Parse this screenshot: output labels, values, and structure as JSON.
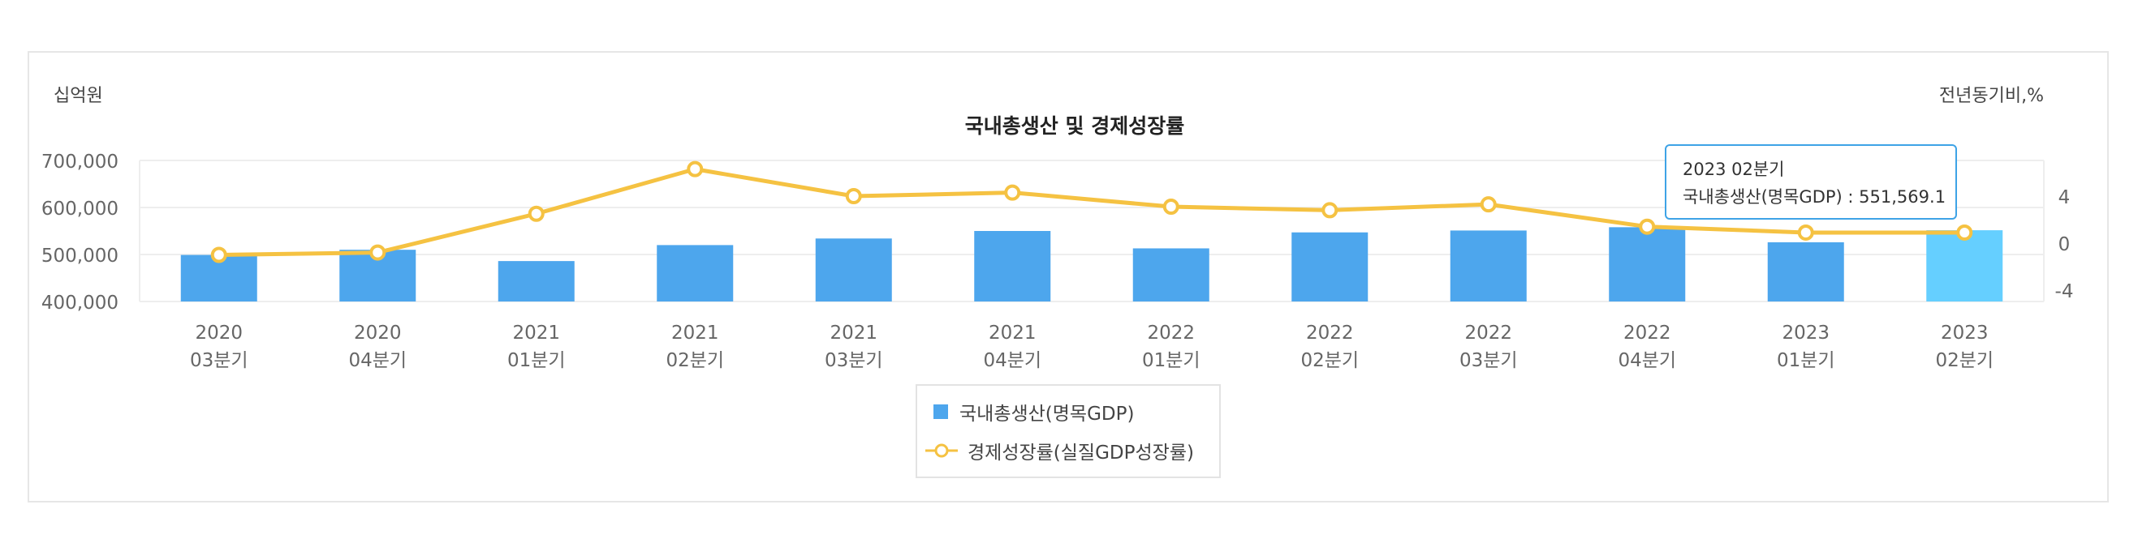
{
  "chart_data": {
    "type": "bar",
    "title": "국내총생산 및 경제성장률",
    "y_left_unit": "십억원",
    "y_right_unit": "전년동기비,%",
    "categories": [
      [
        "2020",
        "03분기"
      ],
      [
        "2020",
        "04분기"
      ],
      [
        "2021",
        "01분기"
      ],
      [
        "2021",
        "02분기"
      ],
      [
        "2021",
        "03분기"
      ],
      [
        "2021",
        "04분기"
      ],
      [
        "2022",
        "01분기"
      ],
      [
        "2022",
        "02분기"
      ],
      [
        "2022",
        "03분기"
      ],
      [
        "2022",
        "04분기"
      ],
      [
        "2023",
        "01분기"
      ],
      [
        "2023",
        "02분기"
      ]
    ],
    "y_left_ticks": [
      "700,000",
      "600,000",
      "500,000",
      "400,000"
    ],
    "y_left_range": [
      400000,
      700000
    ],
    "y_right_ticks": [
      "4",
      "0",
      "-4"
    ],
    "y_right_range": [
      -4,
      4
    ],
    "series": [
      {
        "name": "국내총생산(명목GDP)",
        "type": "bar",
        "axis": "left",
        "color": "#4da6ed",
        "highlight_color": "#65cfff",
        "values": [
          499000,
          510000,
          486000,
          520000,
          534000,
          550000,
          513000,
          547000,
          551000,
          558000,
          526000,
          551569.1
        ]
      },
      {
        "name": "경제성장률(실질GDP성장률)",
        "type": "line",
        "axis": "right",
        "color": "#f5c242",
        "values": [
          -1.0,
          -0.8,
          2.5,
          6.3,
          4.0,
          4.3,
          3.1,
          2.8,
          3.3,
          1.4,
          0.9,
          0.9
        ]
      }
    ],
    "highlighted_index": 11,
    "grid": true,
    "legend_position": "bottom-center",
    "tooltip": {
      "period": "2023 02분기",
      "series_name": "국내총생산(명목GDP)",
      "value_text": "551,569.1"
    }
  }
}
